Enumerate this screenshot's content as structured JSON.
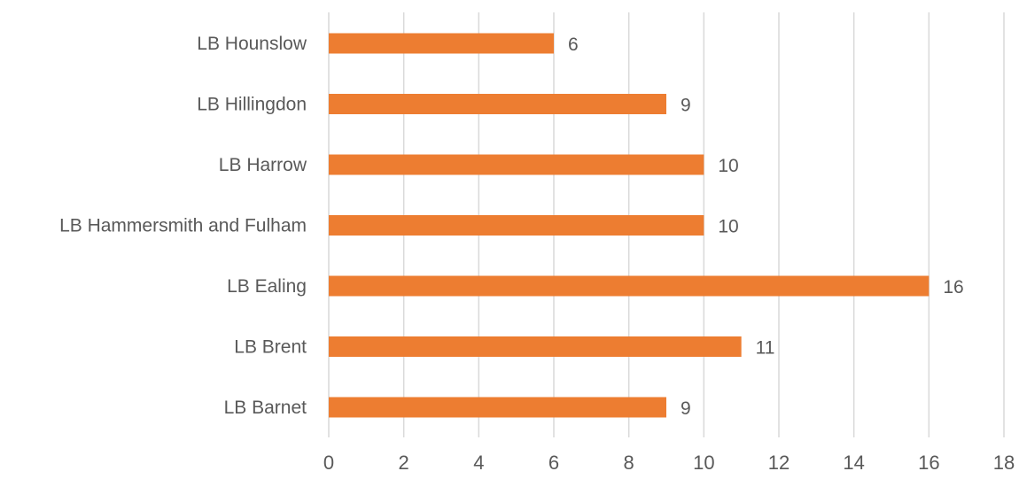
{
  "chart_data": {
    "type": "bar",
    "orientation": "horizontal",
    "title": "",
    "xlabel": "",
    "ylabel": "",
    "categories": [
      "LB Hounslow",
      "LB Hillingdon",
      "LB Harrow",
      "LB Hammersmith and Fulham",
      "LB Ealing",
      "LB Brent",
      "LB Barnet"
    ],
    "values": [
      6,
      9,
      10,
      10,
      16,
      11,
      9
    ],
    "xlim": [
      0,
      18
    ],
    "xticks": [
      0,
      2,
      4,
      6,
      8,
      10,
      12,
      14,
      16,
      18
    ],
    "grid": "vertical",
    "legend": "none",
    "data_labels": true,
    "colors": {
      "bar": "#ED7D31",
      "grid": "#D9D9D9",
      "text": "#595959"
    }
  }
}
